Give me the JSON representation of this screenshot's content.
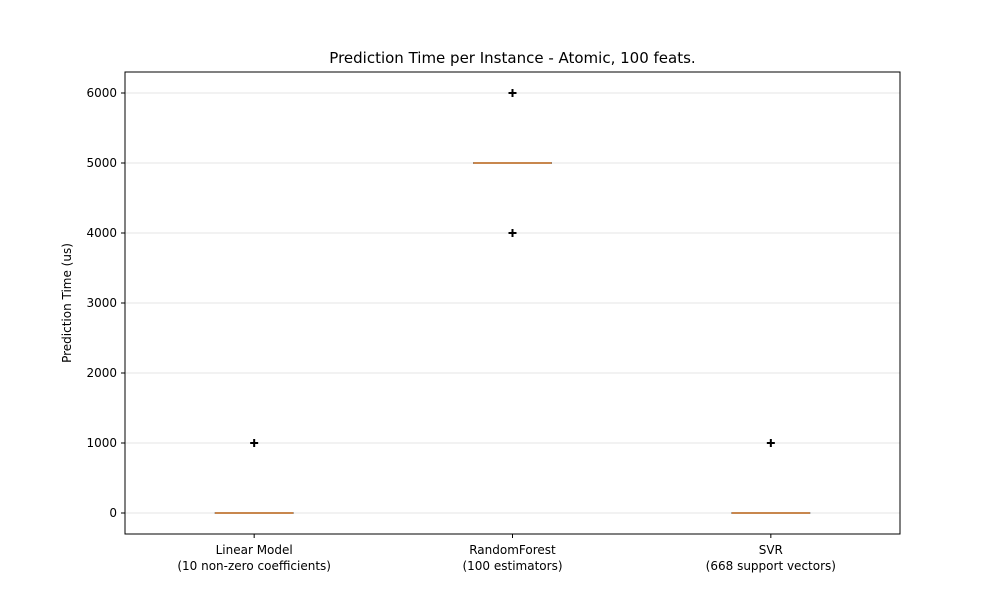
{
  "chart_data": {
    "type": "boxplot",
    "title": "Prediction Time per Instance - Atomic, 100 feats.",
    "xlabel": "",
    "ylabel": "Prediction Time (us)",
    "ylim": [
      -300,
      6300
    ],
    "yticks": [
      0,
      1000,
      2000,
      3000,
      4000,
      5000,
      6000
    ],
    "grid": "horizontal",
    "categories": [
      [
        "Linear Model",
        "(10 non-zero coefficients)"
      ],
      [
        "RandomForest",
        "(100 estimators)"
      ],
      [
        "SVR",
        "(668 support vectors)"
      ]
    ],
    "boxes": [
      {
        "q1": 0,
        "median": 0,
        "q3": 0,
        "whisker_low": 0,
        "whisker_high": 0,
        "outliers": [
          1000
        ]
      },
      {
        "q1": 5000,
        "median": 5000,
        "q3": 5000,
        "whisker_low": 5000,
        "whisker_high": 5000,
        "outliers": [
          4000,
          6000
        ]
      },
      {
        "q1": 0,
        "median": 0,
        "q3": 0,
        "whisker_low": 0,
        "whisker_high": 0,
        "outliers": [
          1000
        ]
      }
    ],
    "colors": {
      "box": "#000000",
      "median": "#c8874e",
      "outlier": "#000000",
      "grid": "#e6e6e6"
    }
  }
}
